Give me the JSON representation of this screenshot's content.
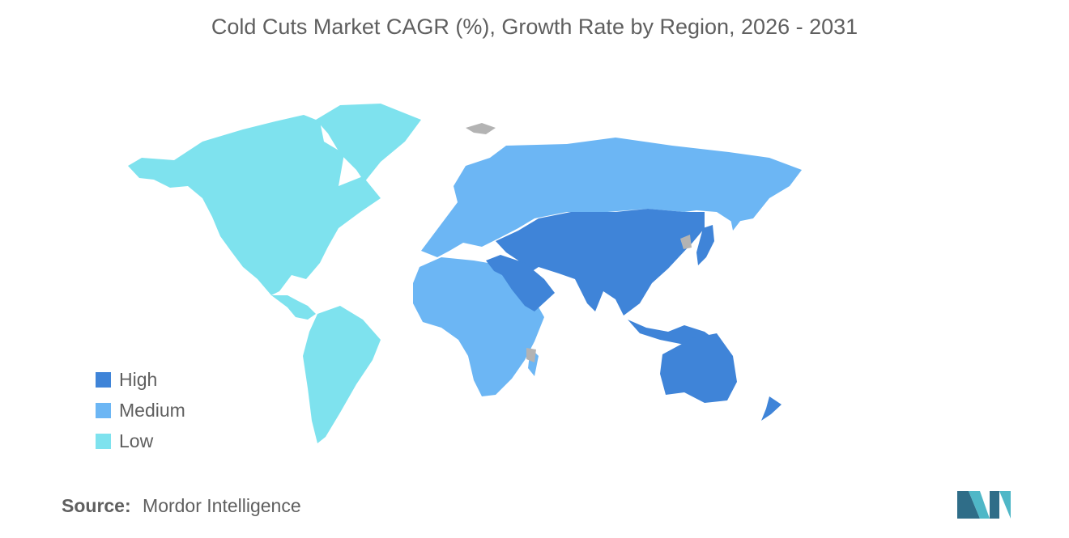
{
  "title": "Cold Cuts Market CAGR (%), Growth Rate by Region, 2026 - 2031",
  "colors": {
    "high": "#3f84d8",
    "medium": "#6cb6f4",
    "low": "#7ee2ee",
    "no_data": "#b3b3b3",
    "logo_dark": "#2f6d88",
    "logo_light": "#4fb7c7"
  },
  "legend": [
    {
      "label": "High",
      "color": "#3f84d8"
    },
    {
      "label": "Medium",
      "color": "#6cb6f4"
    },
    {
      "label": "Low",
      "color": "#7ee2ee"
    }
  ],
  "regions": [
    {
      "name": "North America",
      "level": "Low"
    },
    {
      "name": "South America",
      "level": "Low"
    },
    {
      "name": "Europe",
      "level": "Medium"
    },
    {
      "name": "Africa",
      "level": "Medium"
    },
    {
      "name": "Middle East",
      "level": "High"
    },
    {
      "name": "Asia-Pacific",
      "level": "High"
    }
  ],
  "source": {
    "label": "Source:",
    "name": "Mordor Intelligence"
  }
}
